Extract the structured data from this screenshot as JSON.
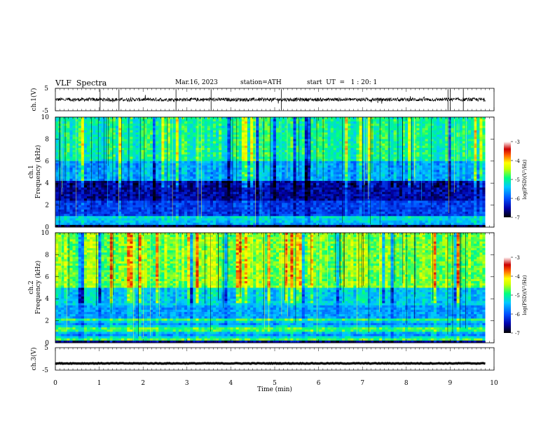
{
  "header": {
    "title": "VLF  Spectra",
    "date": "Mar.16, 2023",
    "station": "station=ATH",
    "start": "start  UT  =   1 : 20: 1"
  },
  "chart_data": [
    {
      "type": "line",
      "id": "ch1-waveform",
      "ylabel": "ch.1(V)",
      "ylim": [
        -5,
        5
      ],
      "yticks": [
        "5",
        "-5"
      ],
      "xlim": [
        0,
        10
      ],
      "baseline_level": 0,
      "noise_amplitude": 0.8,
      "spikes_at_min": [
        1.02,
        1.45,
        2.75,
        3.55,
        5.15,
        8.95,
        9.0,
        9.3
      ]
    },
    {
      "type": "heatmap",
      "id": "ch1-spectrogram",
      "ylabel_lines": [
        "ch.1",
        "Frequency  (kHz)"
      ],
      "ylim": [
        0,
        10
      ],
      "yticks": [
        "0",
        "2",
        "4",
        "6",
        "8",
        "10"
      ],
      "xlim": [
        0,
        9.8
      ],
      "colorbar": {
        "label": "log(PSD)(V²/Hz)",
        "range": [
          -7,
          -3
        ],
        "ticks": [
          "-3",
          "-4",
          "-5",
          "-6",
          "-7"
        ]
      }
    },
    {
      "type": "heatmap",
      "id": "ch2-spectrogram",
      "ylabel_lines": [
        "ch.2",
        "Frequency  (kHz)"
      ],
      "ylim": [
        0,
        10
      ],
      "yticks": [
        "0",
        "2",
        "4",
        "6",
        "8",
        "10"
      ],
      "xlim": [
        0,
        9.8
      ],
      "colorbar": {
        "label": "log(PSD)(V²/Hz)",
        "range": [
          -7,
          -3
        ],
        "ticks": [
          "-3",
          "-4",
          "-5",
          "-6",
          "-7"
        ]
      }
    },
    {
      "type": "line",
      "id": "ch3-waveform",
      "ylabel": "ch.3(V)",
      "ylim": [
        -5,
        5
      ],
      "yticks": [
        "5",
        "-5"
      ],
      "xlim": [
        0,
        10
      ],
      "baseline_level": -2,
      "noise_amplitude": 0.15
    }
  ],
  "x_axis": {
    "label": "Time  (min)",
    "ticks": [
      "0",
      "1",
      "2",
      "3",
      "4",
      "5",
      "6",
      "7",
      "8",
      "9",
      "10"
    ]
  },
  "colors": {
    "scale": [
      "#000000",
      "#0000aa",
      "#0050ff",
      "#00c8ff",
      "#00ff80",
      "#c8ff00",
      "#ffff00",
      "#ff6000",
      "#cc0000",
      "#ffffff"
    ]
  }
}
